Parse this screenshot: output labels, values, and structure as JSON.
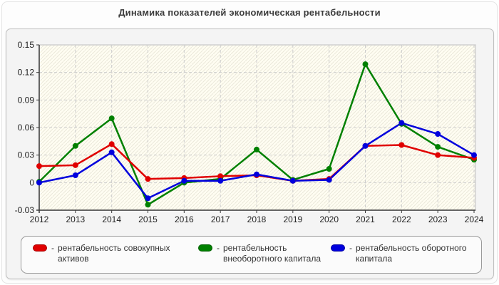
{
  "title": "Динамика показателей экономическая рентабельности",
  "colors": {
    "red": "#e00000",
    "green": "#008000",
    "blue": "#0000dd",
    "grid": "#cccccc",
    "axis": "#3a3a3a",
    "tick_text": "#1f1f1f",
    "plot_bg": "#fffdf2",
    "hatch": "#eae8da",
    "plot_border": "#d0d0d0"
  },
  "legend": {
    "separator": "-",
    "items": [
      {
        "label": "рентабельность совокупных активов",
        "color": "#e00000"
      },
      {
        "label": "рентабельность внеоборотного капитала",
        "color": "#008000"
      },
      {
        "label": "рентабельность оборотного капитала",
        "color": "#0000dd"
      }
    ]
  },
  "chart_data": {
    "type": "line",
    "title": "Динамика показателей экономическая рентабельности",
    "x": [
      2012,
      2013,
      2014,
      2015,
      2016,
      2017,
      2018,
      2019,
      2020,
      2021,
      2022,
      2023,
      2024
    ],
    "xlabel": "",
    "ylabel": "",
    "ylim": [
      -0.03,
      0.15
    ],
    "grid": true,
    "legend_position": "bottom",
    "y_ticks": [
      {
        "value": 0.15,
        "label": "0.15"
      },
      {
        "value": 0.12,
        "label": "0.12"
      },
      {
        "value": 0.09,
        "label": "0.09"
      },
      {
        "value": 0.06,
        "label": "0.06"
      },
      {
        "value": 0.03,
        "label": "0.03"
      },
      {
        "value": 0,
        "label": "0"
      },
      {
        "value": -0.03,
        "label": "-0.03"
      }
    ],
    "series": [
      {
        "name": "рентабельность совокупных активов",
        "color": "#e00000",
        "values": [
          0.018,
          0.019,
          0.042,
          0.004,
          0.005,
          0.007,
          0.008,
          0.002,
          0.004,
          0.04,
          0.041,
          0.03,
          0.027
        ]
      },
      {
        "name": "рентабельность внеоборотного капитала",
        "color": "#008000",
        "values": [
          0.001,
          0.04,
          0.07,
          -0.024,
          0.0,
          0.004,
          0.036,
          0.003,
          0.015,
          0.129,
          0.064,
          0.039,
          0.025
        ]
      },
      {
        "name": "рентабельность оборотного капитала",
        "color": "#0000dd",
        "values": [
          0.0,
          0.008,
          0.033,
          -0.017,
          0.002,
          0.002,
          0.009,
          0.002,
          0.003,
          0.04,
          0.065,
          0.053,
          0.03
        ]
      }
    ]
  }
}
